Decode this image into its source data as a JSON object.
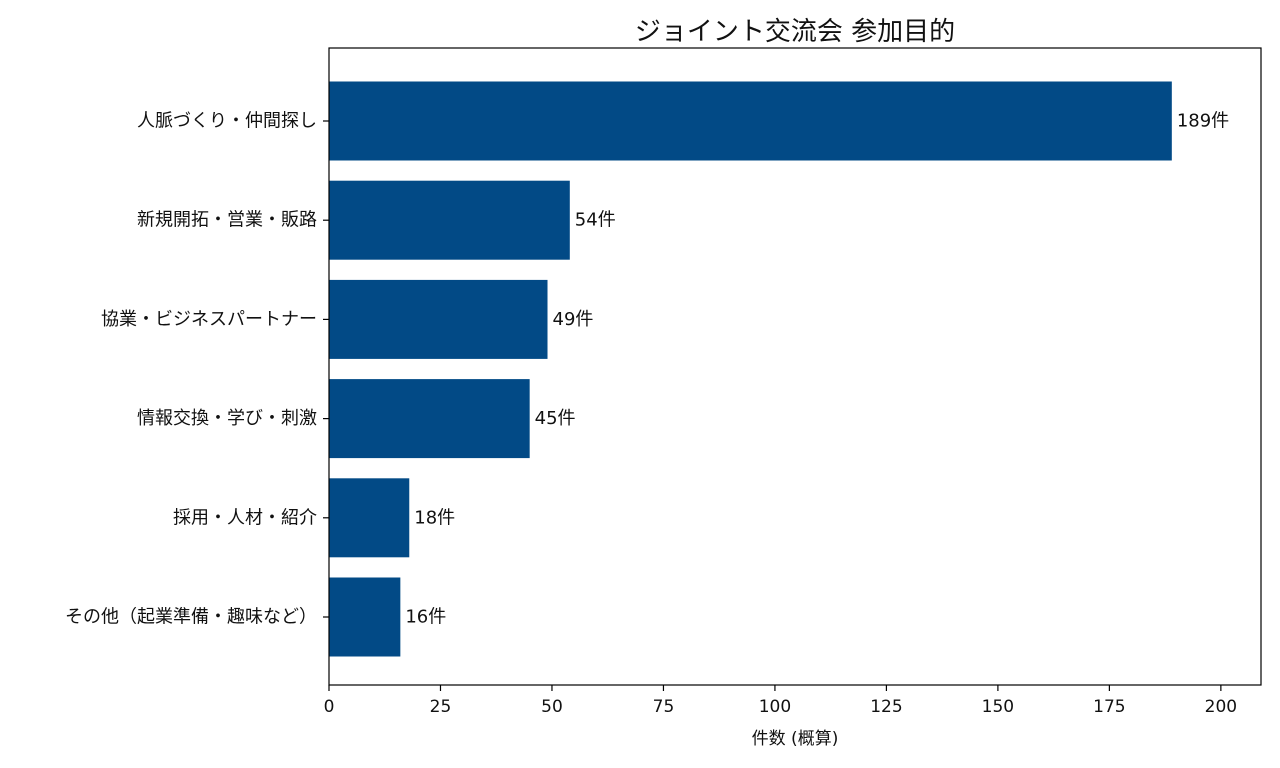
{
  "chart_data": {
    "type": "bar",
    "orientation": "horizontal",
    "title": "ジョイント交流会 参加目的",
    "xlabel": "件数 (概算)",
    "ylabel": "",
    "categories": [
      "人脈づくり・仲間探し",
      "新規開拓・営業・販路",
      "協業・ビジネスパートナー",
      "情報交換・学び・刺激",
      "採用・人材・紹介",
      "その他（起業準備・趣味など）"
    ],
    "values": [
      189,
      54,
      49,
      45,
      18,
      16
    ],
    "data_labels": [
      "189件",
      "54件",
      "49件",
      "45件",
      "18件",
      "16件"
    ],
    "xlim": [
      0,
      209
    ],
    "xticks": [
      0,
      25,
      50,
      75,
      100,
      125,
      150,
      175,
      200
    ],
    "grid": false,
    "legend": "none",
    "bar_color": "#024a86"
  }
}
